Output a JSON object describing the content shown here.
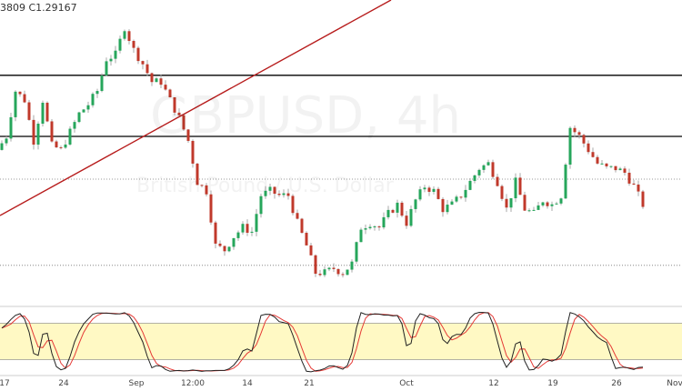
{
  "header": {
    "ohlc_partial": "3809  C1.29167"
  },
  "watermark": {
    "symbol": "GBPUSD, 4h",
    "description": "British Pound / U.S. Dollar"
  },
  "colors": {
    "up": "#26a65b",
    "down": "#c0392b",
    "wick": "#aaaaaa",
    "trendline": "#b71c1c",
    "level": "#000000",
    "stoch_k": "#222222",
    "stoch_d": "#e53935",
    "band": "#fff9c4"
  },
  "chart_data": {
    "type": "candlestick",
    "symbol": "GBPUSD",
    "timeframe": "4h",
    "last_close": 1.29167,
    "closes": [
      1.3078,
      1.3118,
      1.3252,
      1.3225,
      1.3105,
      1.3225,
      1.3091,
      1.3078,
      1.3131,
      1.3185,
      1.3212,
      1.3252,
      1.3346,
      1.3359,
      1.344,
      1.3373,
      1.3332,
      1.3279,
      1.3279,
      1.3225,
      1.3172,
      1.3105,
      1.2984,
      1.2957,
      1.2796,
      1.2783,
      1.2823,
      1.285,
      1.2837,
      1.2944,
      1.2957,
      1.2944,
      1.2944,
      1.2863,
      1.2796,
      1.2716,
      1.2716,
      1.2729,
      1.2716,
      1.2743,
      1.285,
      1.2863,
      1.285,
      1.289,
      1.2917,
      1.2863,
      1.293,
      1.2971,
      1.2957,
      1.2904,
      1.2917,
      1.2944,
      1.2984,
      1.3024,
      1.3038,
      1.2984,
      1.2904,
      1.2984,
      1.2904,
      1.289,
      1.293,
      1.2917,
      1.2944,
      1.3145,
      1.3118,
      1.3078,
      1.3038,
      1.3024,
      1.3024,
      1.3011,
      1.2971,
      1.2917
    ],
    "horizontal_levels": [
      1.3298,
      1.3118
    ],
    "dotted_levels": [
      1.2992,
      1.2738
    ],
    "indicator": {
      "type": "stochastic",
      "upper_band": 80,
      "lower_band": 20
    },
    "x_tick_labels": [
      "17",
      "24",
      "Sep",
      "12:00",
      "14",
      "21",
      "Oct",
      "12",
      "19",
      "26",
      "Nov"
    ]
  }
}
